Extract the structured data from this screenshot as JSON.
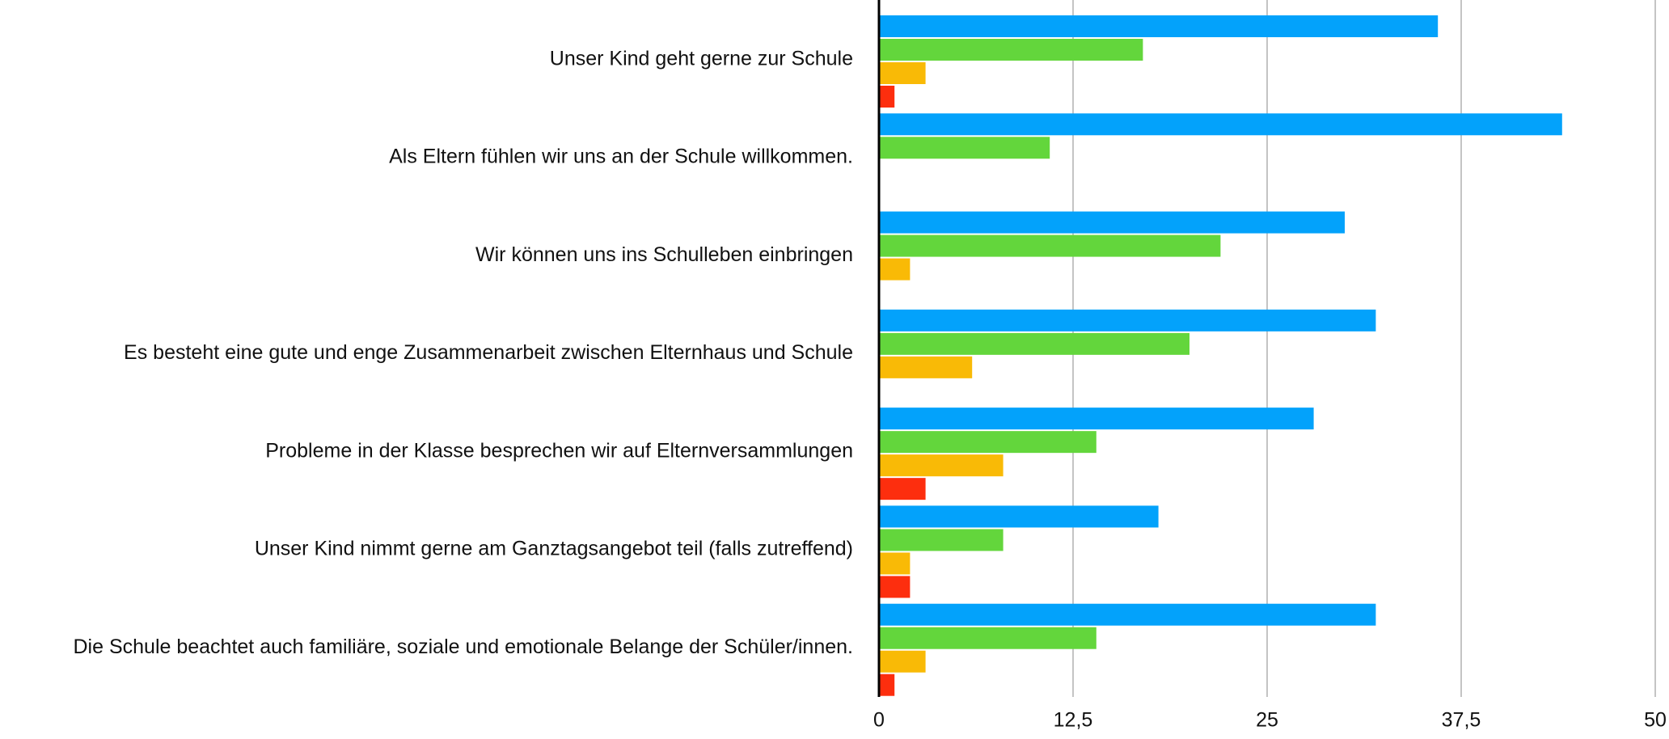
{
  "chart_data": {
    "type": "barh",
    "categories": [
      "Unser Kind geht gerne zur Schule",
      "Als Eltern fühlen wir uns an der Schule willkommen.",
      "Wir können uns ins Schulleben einbringen",
      "Es besteht eine gute und enge Zusammenarbeit zwischen Elternhaus und Schule",
      "Probleme in der Klasse besprechen wir auf Elternversammlungen",
      "Unser Kind nimmt gerne am Ganztagsangebot teil (falls zutreffend)",
      "Die Schule beachtet auch familiäre, soziale und emotionale Belange der Schüler/innen."
    ],
    "series": [
      {
        "color": "#03a2fb",
        "values": [
          36,
          44,
          30,
          32,
          28,
          18,
          32
        ]
      },
      {
        "color": "#63d63c",
        "values": [
          17,
          11,
          22,
          20,
          14,
          8,
          14
        ]
      },
      {
        "color": "#f9ba06",
        "values": [
          3,
          0,
          2,
          6,
          8,
          2,
          3
        ]
      },
      {
        "color": "#fd2e0e",
        "values": [
          1,
          0,
          0,
          0,
          3,
          2,
          1
        ]
      }
    ],
    "xlim": [
      0,
      50
    ],
    "xticks": [
      0,
      {
        "value": 12.5,
        "label": "12,5"
      },
      25,
      {
        "value": 37.5,
        "label": "37,5"
      },
      50
    ],
    "grid": true
  }
}
